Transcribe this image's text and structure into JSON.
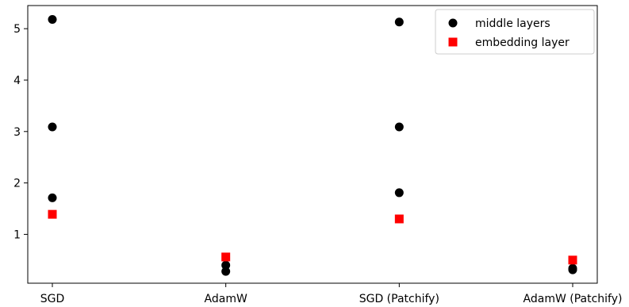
{
  "chart_data": {
    "type": "scatter",
    "categories": [
      "SGD",
      "AdamW",
      "SGD (Patchify)",
      "AdamW (Patchify)"
    ],
    "series": [
      {
        "name": "middle layers",
        "marker": "circle",
        "color": "#000000",
        "points": [
          {
            "x": "SGD",
            "y": 5.18
          },
          {
            "x": "SGD",
            "y": 3.09
          },
          {
            "x": "SGD",
            "y": 1.71
          },
          {
            "x": "AdamW",
            "y": 0.4
          },
          {
            "x": "AdamW",
            "y": 0.28
          },
          {
            "x": "SGD (Patchify)",
            "y": 5.13
          },
          {
            "x": "SGD (Patchify)",
            "y": 3.09
          },
          {
            "x": "SGD (Patchify)",
            "y": 1.81
          },
          {
            "x": "AdamW (Patchify)",
            "y": 0.34
          },
          {
            "x": "AdamW (Patchify)",
            "y": 0.31
          }
        ]
      },
      {
        "name": "embedding layer",
        "marker": "square",
        "color": "#ff0000",
        "points": [
          {
            "x": "SGD",
            "y": 1.39
          },
          {
            "x": "AdamW",
            "y": 0.56
          },
          {
            "x": "SGD (Patchify)",
            "y": 1.3
          },
          {
            "x": "AdamW (Patchify)",
            "y": 0.5
          }
        ]
      }
    ],
    "yticks": [
      1,
      2,
      3,
      4,
      5
    ],
    "ylim": [
      0.05,
      5.45
    ],
    "title": "",
    "xlabel": "",
    "ylabel": "",
    "grid": false,
    "legend_position": "top-right"
  }
}
